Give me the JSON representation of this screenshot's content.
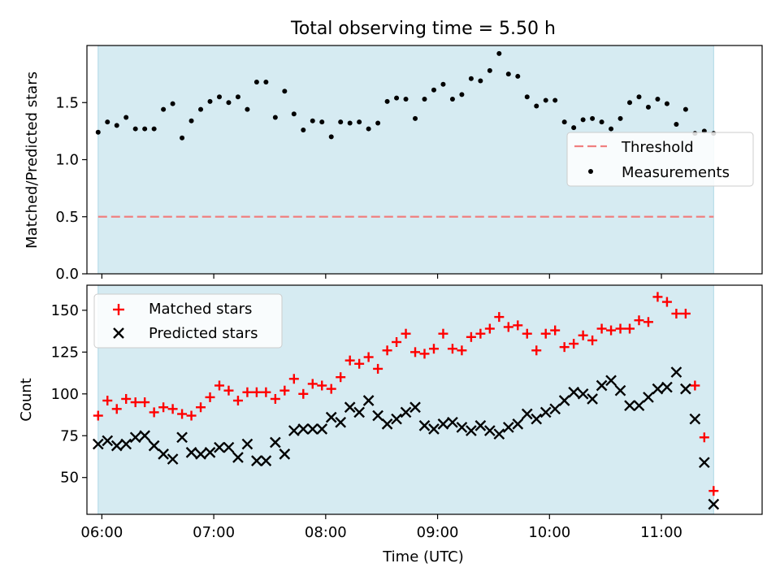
{
  "title": "Total observing time = 5.50 h",
  "xlabel": "Time (UTC)",
  "x_ticks": [
    "06:00",
    "07:00",
    "08:00",
    "09:00",
    "10:00",
    "11:00"
  ],
  "chart_data": [
    {
      "type": "scatter",
      "ylabel": "Matched/Predicted stars",
      "xlim": [
        "05:52",
        "11:54"
      ],
      "ylim": [
        0,
        2.0
      ],
      "y_ticks": [
        "0.0",
        "0.5",
        "1.0",
        "1.5"
      ],
      "shaded_span": [
        "05:58",
        "11:28"
      ],
      "threshold": 0.5,
      "legend_position": "center-right",
      "legend": [
        {
          "label": "Threshold",
          "kind": "dashed-line",
          "color": "#f08080"
        },
        {
          "label": "Measurements",
          "kind": "dot",
          "color": "#000000"
        }
      ],
      "series": [
        {
          "name": "Measurements",
          "x": [
            "05:58",
            "06:03",
            "06:08",
            "06:13",
            "06:18",
            "06:23",
            "06:28",
            "06:33",
            "06:38",
            "06:43",
            "06:48",
            "06:53",
            "06:58",
            "07:03",
            "07:08",
            "07:13",
            "07:18",
            "07:23",
            "07:28",
            "07:33",
            "07:38",
            "07:43",
            "07:48",
            "07:53",
            "07:58",
            "08:03",
            "08:08",
            "08:13",
            "08:18",
            "08:23",
            "08:28",
            "08:33",
            "08:38",
            "08:43",
            "08:48",
            "08:53",
            "08:58",
            "09:03",
            "09:08",
            "09:13",
            "09:18",
            "09:23",
            "09:28",
            "09:33",
            "09:38",
            "09:43",
            "09:48",
            "09:53",
            "09:58",
            "10:03",
            "10:08",
            "10:13",
            "10:18",
            "10:23",
            "10:28",
            "10:33",
            "10:38",
            "10:43",
            "10:48",
            "10:53",
            "10:58",
            "11:03",
            "11:08",
            "11:13",
            "11:18",
            "11:23",
            "11:28"
          ],
          "y": [
            1.24,
            1.33,
            1.3,
            1.37,
            1.27,
            1.27,
            1.27,
            1.44,
            1.49,
            1.19,
            1.34,
            1.44,
            1.51,
            1.55,
            1.5,
            1.55,
            1.44,
            1.68,
            1.68,
            1.37,
            1.6,
            1.4,
            1.26,
            1.34,
            1.33,
            1.2,
            1.33,
            1.32,
            1.33,
            1.27,
            1.32,
            1.51,
            1.54,
            1.53,
            1.36,
            1.53,
            1.61,
            1.66,
            1.53,
            1.57,
            1.71,
            1.69,
            1.78,
            1.93,
            1.75,
            1.73,
            1.55,
            1.47,
            1.52,
            1.52,
            1.33,
            1.28,
            1.35,
            1.36,
            1.33,
            1.27,
            1.36,
            1.5,
            1.55,
            1.46,
            1.53,
            1.49,
            1.31,
            1.44,
            1.23,
            1.25,
            1.23
          ]
        }
      ]
    },
    {
      "type": "scatter",
      "ylabel": "Count",
      "xlim": [
        "05:52",
        "11:54"
      ],
      "ylim": [
        28,
        165
      ],
      "y_ticks": [
        "50",
        "75",
        "100",
        "125",
        "150"
      ],
      "shaded_span": [
        "05:58",
        "11:28"
      ],
      "legend_position": "top-left",
      "legend": [
        {
          "label": "Matched stars",
          "kind": "plus",
          "color": "#ff0000"
        },
        {
          "label": "Predicted stars",
          "kind": "x",
          "color": "#000000"
        }
      ],
      "series": [
        {
          "name": "Matched stars",
          "x": [
            "05:58",
            "06:03",
            "06:08",
            "06:13",
            "06:18",
            "06:23",
            "06:28",
            "06:33",
            "06:38",
            "06:43",
            "06:48",
            "06:53",
            "06:58",
            "07:03",
            "07:08",
            "07:13",
            "07:18",
            "07:23",
            "07:28",
            "07:33",
            "07:38",
            "07:43",
            "07:48",
            "07:53",
            "07:58",
            "08:03",
            "08:08",
            "08:13",
            "08:18",
            "08:23",
            "08:28",
            "08:33",
            "08:38",
            "08:43",
            "08:48",
            "08:53",
            "08:58",
            "09:03",
            "09:08",
            "09:13",
            "09:18",
            "09:23",
            "09:28",
            "09:33",
            "09:38",
            "09:43",
            "09:48",
            "09:53",
            "09:58",
            "10:03",
            "10:08",
            "10:13",
            "10:18",
            "10:23",
            "10:28",
            "10:33",
            "10:38",
            "10:43",
            "10:48",
            "10:53",
            "10:58",
            "11:03",
            "11:08",
            "11:13",
            "11:18",
            "11:23",
            "11:28"
          ],
          "y": [
            87,
            96,
            91,
            97,
            95,
            95,
            89,
            92,
            91,
            88,
            87,
            92,
            98,
            105,
            102,
            96,
            101,
            101,
            101,
            97,
            102,
            109,
            100,
            106,
            105,
            103,
            110,
            120,
            118,
            122,
            115,
            126,
            131,
            136,
            125,
            124,
            127,
            136,
            127,
            126,
            134,
            136,
            139,
            146,
            140,
            141,
            136,
            126,
            136,
            138,
            128,
            130,
            135,
            132,
            139,
            138,
            139,
            139,
            144,
            143,
            158,
            155,
            148,
            148,
            105,
            74,
            42
          ]
        },
        {
          "name": "Predicted stars",
          "x": [
            "05:58",
            "06:03",
            "06:08",
            "06:13",
            "06:18",
            "06:23",
            "06:28",
            "06:33",
            "06:38",
            "06:43",
            "06:48",
            "06:53",
            "06:58",
            "07:03",
            "07:08",
            "07:13",
            "07:18",
            "07:23",
            "07:28",
            "07:33",
            "07:38",
            "07:43",
            "07:48",
            "07:53",
            "07:58",
            "08:03",
            "08:08",
            "08:13",
            "08:18",
            "08:23",
            "08:28",
            "08:33",
            "08:38",
            "08:43",
            "08:48",
            "08:53",
            "08:58",
            "09:03",
            "09:08",
            "09:13",
            "09:18",
            "09:23",
            "09:28",
            "09:33",
            "09:38",
            "09:43",
            "09:48",
            "09:53",
            "09:58",
            "10:03",
            "10:08",
            "10:13",
            "10:18",
            "10:23",
            "10:28",
            "10:33",
            "10:38",
            "10:43",
            "10:48",
            "10:53",
            "10:58",
            "11:03",
            "11:08",
            "11:13",
            "11:18",
            "11:23",
            "11:28"
          ],
          "y": [
            70,
            72,
            69,
            70,
            74,
            75,
            69,
            64,
            61,
            74,
            65,
            64,
            65,
            68,
            68,
            62,
            70,
            60,
            60,
            71,
            64,
            78,
            79,
            79,
            79,
            86,
            83,
            92,
            89,
            96,
            87,
            82,
            85,
            89,
            92,
            81,
            79,
            82,
            83,
            80,
            78,
            81,
            78,
            76,
            80,
            82,
            88,
            85,
            89,
            91,
            96,
            101,
            100,
            97,
            105,
            108,
            102,
            93,
            93,
            98,
            103,
            104,
            113,
            103,
            85,
            59,
            34
          ]
        }
      ]
    }
  ]
}
